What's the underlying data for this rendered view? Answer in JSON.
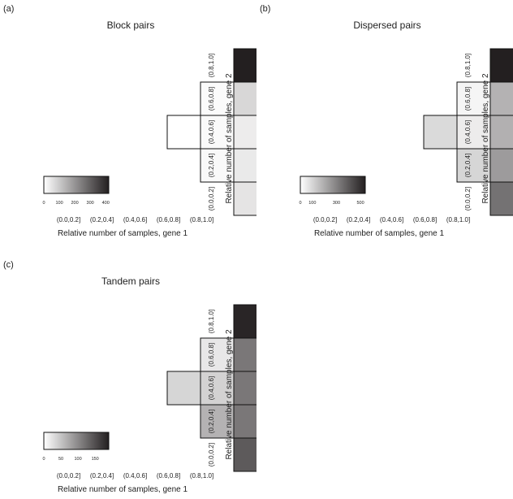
{
  "chart_data": [
    {
      "type": "heatmap",
      "panel_label": "(a)",
      "title": "Block pairs",
      "xlabel": "Relative number of samples, gene 1",
      "ylabel": "Relative number of samples, gene 2",
      "x_categories": [
        "(0.0,0.2]",
        "(0.2,0.4]",
        "(0.4,0.6]",
        "(0.6,0.8]",
        "(0.8,1.0]"
      ],
      "y_categories": [
        "(0.0,0.2]",
        "(0.2,0.4]",
        "(0.4,0.6]",
        "(0.6,0.8]",
        "(0.8,1.0]"
      ],
      "cells": [
        {
          "x": 4,
          "y": 4,
          "value": 420
        },
        {
          "x": 3,
          "y": 3,
          "value": 8
        },
        {
          "x": 4,
          "y": 3,
          "value": 75
        },
        {
          "x": 2,
          "y": 2,
          "value": 0
        },
        {
          "x": 3,
          "y": 2,
          "value": 10
        },
        {
          "x": 4,
          "y": 2,
          "value": 35
        },
        {
          "x": 3,
          "y": 1,
          "value": 12
        },
        {
          "x": 4,
          "y": 1,
          "value": 40
        },
        {
          "x": 4,
          "y": 0,
          "value": 50
        }
      ],
      "colorbar": {
        "min": 0,
        "max": 420,
        "ticks": [
          0,
          100,
          200,
          300,
          400
        ],
        "low_color": "#ffffff",
        "high_color": "#231f20"
      }
    },
    {
      "type": "heatmap",
      "panel_label": "(b)",
      "title": "Dispersed pairs",
      "xlabel": "Relative number of samples, gene 1",
      "ylabel": "Relative number of samples, gene 2",
      "x_categories": [
        "(0.0,0.2]",
        "(0.2,0.4]",
        "(0.4,0.6]",
        "(0.6,0.8]",
        "(0.8,1.0]"
      ],
      "y_categories": [
        "(0.0,0.2]",
        "(0.2,0.4]",
        "(0.4,0.6]",
        "(0.6,0.8]",
        "(0.8,1.0]"
      ],
      "cells": [
        {
          "x": 4,
          "y": 4,
          "value": 540
        },
        {
          "x": 3,
          "y": 3,
          "value": 25
        },
        {
          "x": 4,
          "y": 3,
          "value": 185
        },
        {
          "x": 2,
          "y": 2,
          "value": 90
        },
        {
          "x": 3,
          "y": 2,
          "value": 45
        },
        {
          "x": 4,
          "y": 2,
          "value": 190
        },
        {
          "x": 3,
          "y": 1,
          "value": 100
        },
        {
          "x": 4,
          "y": 1,
          "value": 240
        },
        {
          "x": 4,
          "y": 0,
          "value": 340
        }
      ],
      "colorbar": {
        "min": 0,
        "max": 540,
        "ticks": [
          0,
          100,
          300,
          500
        ],
        "low_color": "#ffffff",
        "high_color": "#231f20"
      }
    },
    {
      "type": "heatmap",
      "panel_label": "(c)",
      "title": "Tandem pairs",
      "xlabel": "Relative number of samples, gene 1",
      "ylabel": "Relative number of samples, gene 2",
      "x_categories": [
        "(0.0,0.2]",
        "(0.2,0.4]",
        "(0.4,0.6]",
        "(0.6,0.8]",
        "(0.8,1.0]"
      ],
      "y_categories": [
        "(0.0,0.2]",
        "(0.2,0.4]",
        "(0.4,0.6]",
        "(0.6,0.8]",
        "(0.8,1.0]"
      ],
      "cells": [
        {
          "x": 4,
          "y": 4,
          "value": 185
        },
        {
          "x": 3,
          "y": 3,
          "value": 20
        },
        {
          "x": 4,
          "y": 3,
          "value": 115
        },
        {
          "x": 2,
          "y": 2,
          "value": 35
        },
        {
          "x": 3,
          "y": 2,
          "value": 38
        },
        {
          "x": 4,
          "y": 2,
          "value": 115
        },
        {
          "x": 3,
          "y": 1,
          "value": 65
        },
        {
          "x": 4,
          "y": 1,
          "value": 115
        },
        {
          "x": 4,
          "y": 0,
          "value": 140
        }
      ],
      "colorbar": {
        "min": 0,
        "max": 190,
        "ticks": [
          0,
          50,
          100,
          150
        ],
        "low_color": "#ffffff",
        "high_color": "#231f20"
      }
    }
  ]
}
